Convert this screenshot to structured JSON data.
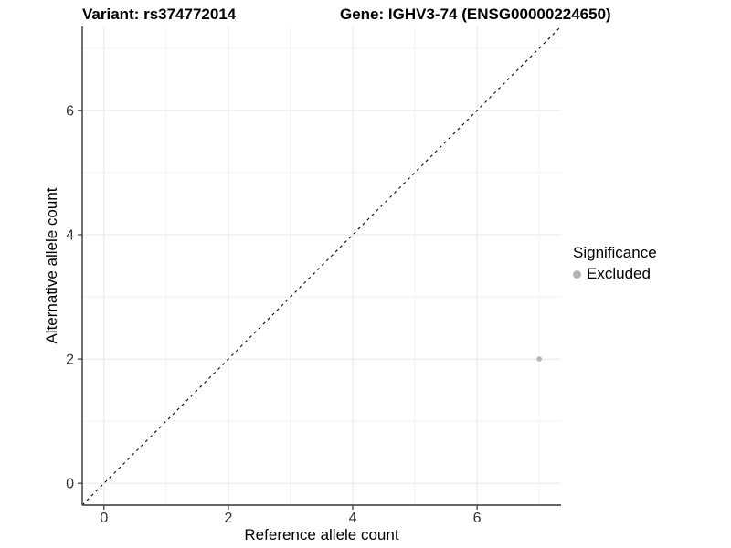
{
  "chart_data": {
    "type": "scatter",
    "title_left": "Variant: rs374772014",
    "title_right": "Gene: IGHV3-74 (ENSG00000224650)",
    "xlabel": "Reference allele count",
    "ylabel": "Alternative allele count",
    "xlim": [
      -0.35,
      7.35
    ],
    "ylim": [
      -0.35,
      7.35
    ],
    "x_ticks": [
      0,
      2,
      4,
      6
    ],
    "y_ticks": [
      0,
      2,
      4,
      6
    ],
    "x_minor_gridlines": [
      1,
      3,
      5,
      7
    ],
    "y_minor_gridlines": [
      1,
      3,
      5,
      7
    ],
    "grid": "on",
    "reference_line": {
      "type": "identity",
      "style": "dashed",
      "color": "#000000"
    },
    "series": [
      {
        "name": "Excluded",
        "color": "#b4b4b4",
        "points": [
          {
            "x": 7,
            "y": 2
          }
        ]
      }
    ],
    "legend": {
      "title": "Significance",
      "position": "right",
      "entries": [
        {
          "label": "Excluded",
          "color": "#b4b4b4"
        }
      ]
    },
    "colors": {
      "grid_major": "#e7e7e7",
      "grid_minor": "#f2f2f2",
      "axis": "#333333",
      "tick_text": "#333333",
      "excluded_point": "#b4b4b4"
    }
  }
}
